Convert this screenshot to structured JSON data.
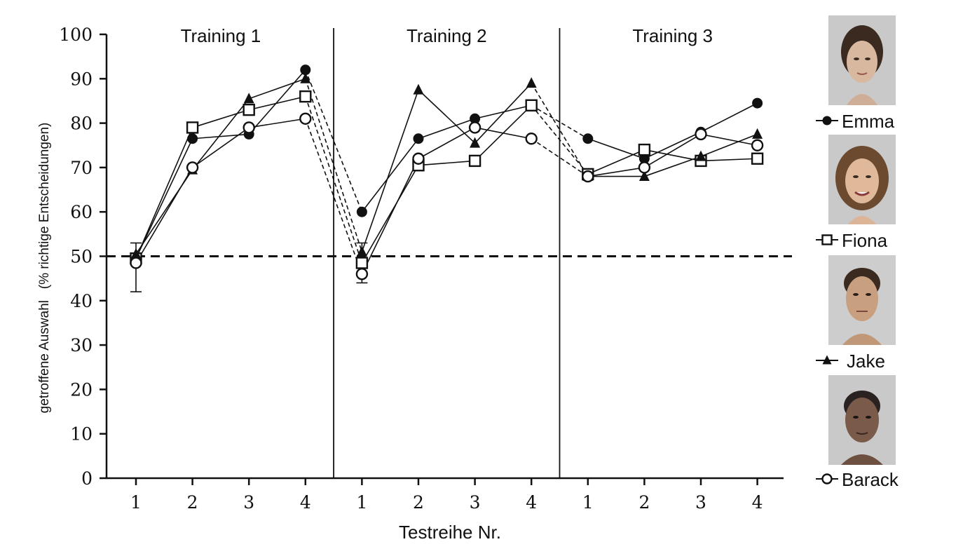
{
  "chart_data": {
    "type": "line",
    "title": "",
    "xlabel": "Testreihe Nr.",
    "ylabel": "getroffene Auswahl   (% richtige Entscheidungen)",
    "ylim": [
      0,
      100
    ],
    "yticks": [
      "0",
      "10",
      "20",
      "30",
      "40",
      "50",
      "60",
      "70",
      "80",
      "90",
      "100"
    ],
    "reference_line": {
      "y": 50,
      "style": "dashed"
    },
    "grid": false,
    "legend_position": "right",
    "phases": [
      {
        "label": "Training 1",
        "ticks": [
          "1",
          "2",
          "3",
          "4"
        ]
      },
      {
        "label": "Training 2",
        "ticks": [
          "1",
          "2",
          "3",
          "4"
        ]
      },
      {
        "label": "Training 3",
        "ticks": [
          "1",
          "2",
          "3",
          "4"
        ]
      }
    ],
    "series": [
      {
        "name": "Emma",
        "marker": "filled-circle",
        "values": [
          49.5,
          76.5,
          77.5,
          92,
          60,
          76.5,
          81,
          84,
          76.5,
          72,
          78,
          84.5
        ]
      },
      {
        "name": "Fiona",
        "marker": "open-square",
        "values": [
          49.5,
          79,
          83,
          86,
          48.5,
          70.5,
          71.5,
          84,
          68.5,
          74,
          71.5,
          72
        ]
      },
      {
        "name": "Jake",
        "marker": "filled-triangle",
        "values": [
          50.5,
          69.5,
          85.5,
          90,
          51,
          87.5,
          75.5,
          89,
          68,
          68,
          72.5,
          77.5
        ]
      },
      {
        "name": "Barack",
        "marker": "open-circle",
        "values": [
          48.5,
          70,
          79,
          81,
          46,
          72,
          79,
          76.5,
          68,
          70,
          77.5,
          75
        ]
      }
    ],
    "error_bars": {
      "first_point": {
        "low": 42,
        "high": 53
      },
      "phase2_first_point": {
        "low": 44,
        "high": 53
      }
    }
  }
}
